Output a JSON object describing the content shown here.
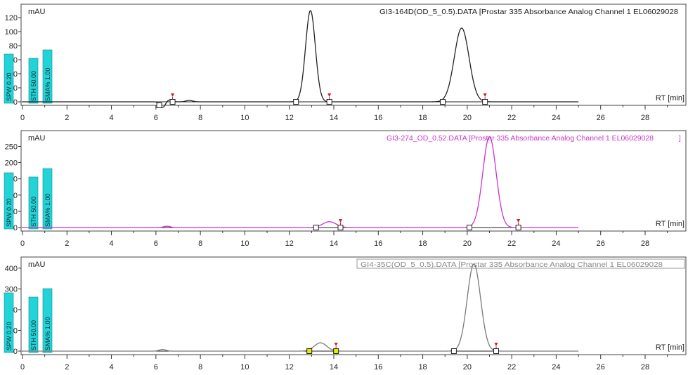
{
  "chart_data": [
    {
      "type": "line",
      "ylabel": "mAU",
      "xlabel": "RT [min]",
      "file_label": "GI3-164D(OD_5_0.5).DATA [Prostar 335 Absorbance Analog Channel 1 EL06029028",
      "color": "#222222",
      "x_ticks": [
        "0",
        "2",
        "4",
        "6",
        "8",
        "10",
        "12",
        "14",
        "16",
        "18",
        "20",
        "22",
        "24",
        "26",
        "28"
      ],
      "y_ticks": [
        "0",
        "20",
        "40",
        "60",
        "80",
        "100",
        "120"
      ],
      "xlim": [
        0,
        29
      ],
      "ylim": [
        -8,
        135
      ],
      "baseline_end": 25,
      "peaks": [
        {
          "rt": 6.3,
          "height": -8,
          "width": 0.12
        },
        {
          "rt": 6.6,
          "height": 3,
          "width": 0.12
        },
        {
          "rt": 7.5,
          "height": 2,
          "width": 0.15
        },
        {
          "rt": 12.95,
          "height": 130,
          "width": 0.22
        },
        {
          "rt": 19.75,
          "height": 105,
          "width": 0.33
        }
      ],
      "integration_markers": [
        {
          "rt": 6.15,
          "level": -5
        },
        {
          "rt": 6.75,
          "level": 0,
          "flag": true
        },
        {
          "rt": 12.3,
          "level": 0
        },
        {
          "rt": 13.8,
          "level": 0,
          "flag": true
        },
        {
          "rt": 18.9,
          "level": 0
        },
        {
          "rt": 20.8,
          "level": 0,
          "flag": true
        }
      ],
      "event_labels": [
        "SPW 0.20",
        "STH 50.00",
        "SMA% 1.00"
      ]
    },
    {
      "type": "line",
      "ylabel": "mAU",
      "xlabel": "RT [min]",
      "file_label": "GI3-274_OD_0.52.DATA [Prostar 335 Absorbance Analog Channel 1 EL06029028",
      "file_label_suffix": "]",
      "color": "#cc33cc",
      "x_ticks": [
        "0",
        "2",
        "4",
        "6",
        "8",
        "10",
        "12",
        "14",
        "16",
        "18",
        "20",
        "22",
        "24",
        "26",
        "28"
      ],
      "y_ticks": [
        "0",
        "50",
        "100",
        "150",
        "200",
        "250"
      ],
      "xlim": [
        0,
        29
      ],
      "ylim": [
        -15,
        290
      ],
      "baseline_end": 25,
      "peaks": [
        {
          "rt": 6.5,
          "height": 4,
          "width": 0.15
        },
        {
          "rt": 13.8,
          "height": 18,
          "width": 0.3
        },
        {
          "rt": 21.0,
          "height": 280,
          "width": 0.3
        }
      ],
      "integration_markers": [
        {
          "rt": 13.2,
          "level": 0
        },
        {
          "rt": 14.3,
          "level": 0,
          "flag": true
        },
        {
          "rt": 20.1,
          "level": 0
        },
        {
          "rt": 22.3,
          "level": 0,
          "flag": true
        }
      ],
      "event_labels": [
        "SPW 0.20",
        "STH 50.00",
        "SMA% 1.00"
      ]
    },
    {
      "type": "line",
      "ylabel": "mAU",
      "xlabel": "RT [min]",
      "file_label": "GI4-35C(OD_5_0.5).DATA [Prostar 335 Absorbance Analog Channel 1 EL06029028",
      "color": "#7a7a7a",
      "x_ticks": [
        "0",
        "2",
        "4",
        "6",
        "8",
        "10",
        "12",
        "14",
        "16",
        "18",
        "20",
        "22",
        "24",
        "26",
        "28"
      ],
      "y_ticks": [
        "0",
        "100",
        "200",
        "300",
        "400"
      ],
      "xlim": [
        0,
        29
      ],
      "ylim": [
        -15,
        440
      ],
      "baseline_end": 25,
      "peaks": [
        {
          "rt": 6.3,
          "height": 8,
          "width": 0.15
        },
        {
          "rt": 13.4,
          "height": 40,
          "width": 0.28
        },
        {
          "rt": 20.3,
          "height": 420,
          "width": 0.3
        }
      ],
      "integration_markers": [
        {
          "rt": 12.9,
          "level": 0,
          "yellow": true
        },
        {
          "rt": 14.1,
          "level": 0,
          "yellow": true,
          "flag": true
        },
        {
          "rt": 19.4,
          "level": 0
        },
        {
          "rt": 21.3,
          "level": 0,
          "flag": true
        }
      ],
      "event_labels": [
        "SPW 0.20",
        "STH 50.00",
        "SMA% 1.00"
      ]
    }
  ]
}
